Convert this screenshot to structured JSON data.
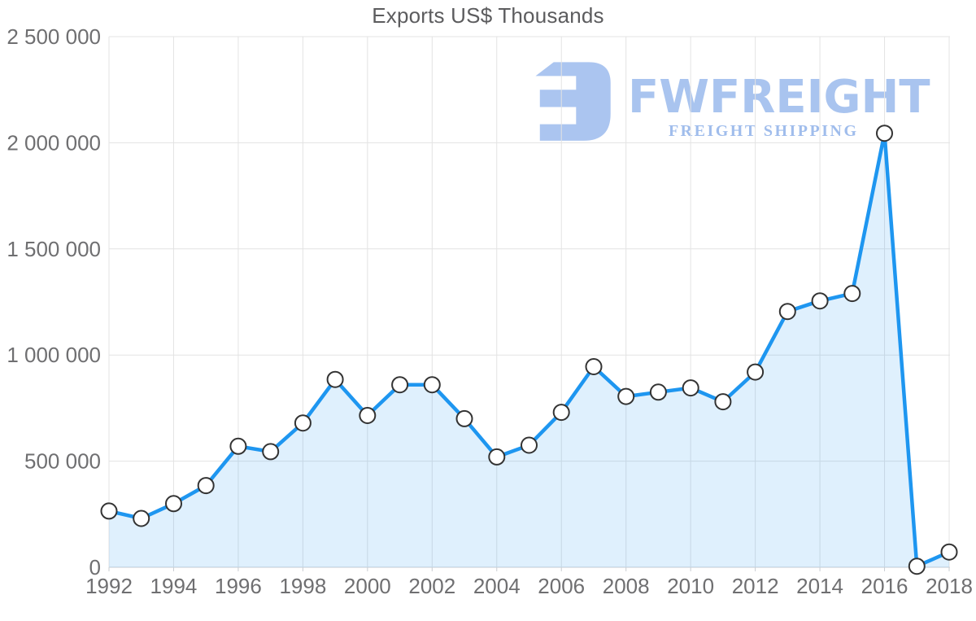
{
  "watermark": {
    "brand": "FWFREIGHT",
    "tagline": "FREIGHT SHIPPING",
    "icon": "fwfreight-logo-icon",
    "color": "#a9c4ef"
  },
  "chart_data": {
    "type": "area",
    "title": "Exports US$ Thousands",
    "xlabel": "",
    "ylabel": "",
    "x": [
      1992,
      1993,
      1994,
      1995,
      1996,
      1997,
      1998,
      1999,
      2000,
      2001,
      2002,
      2003,
      2004,
      2005,
      2006,
      2007,
      2008,
      2009,
      2010,
      2011,
      2012,
      2013,
      2014,
      2015,
      2016,
      2017,
      2018
    ],
    "series": [
      {
        "name": "Exports US$ Thousands",
        "values": [
          265000,
          230000,
          300000,
          385000,
          570000,
          545000,
          680000,
          885000,
          715000,
          860000,
          860000,
          700000,
          520000,
          575000,
          730000,
          945000,
          805000,
          825000,
          845000,
          780000,
          920000,
          1205000,
          1255000,
          1290000,
          2045000,
          5000,
          72000
        ]
      }
    ],
    "ylim": [
      0,
      2500000
    ],
    "yticks": [
      0,
      500000,
      1000000,
      1500000,
      2000000,
      2500000
    ],
    "ytick_labels": [
      "0",
      "500 000",
      "1 000 000",
      "1 500 000",
      "2 000 000",
      "2 500 000"
    ],
    "xticks": [
      1992,
      1994,
      1996,
      1998,
      2000,
      2002,
      2004,
      2006,
      2008,
      2010,
      2012,
      2014,
      2016,
      2018
    ],
    "grid": true,
    "legend_position": "none",
    "styles": {
      "line_color": "#1e96f0",
      "fill_color": "rgba(30,150,240,0.14)",
      "marker_fill": "#ffffff",
      "marker_stroke": "#333333",
      "grid_color": "#e3e3e3",
      "axis_color": "#c9cdd2",
      "tick_label_color": "#6f6f71",
      "title_color": "#5c5c5e"
    }
  }
}
